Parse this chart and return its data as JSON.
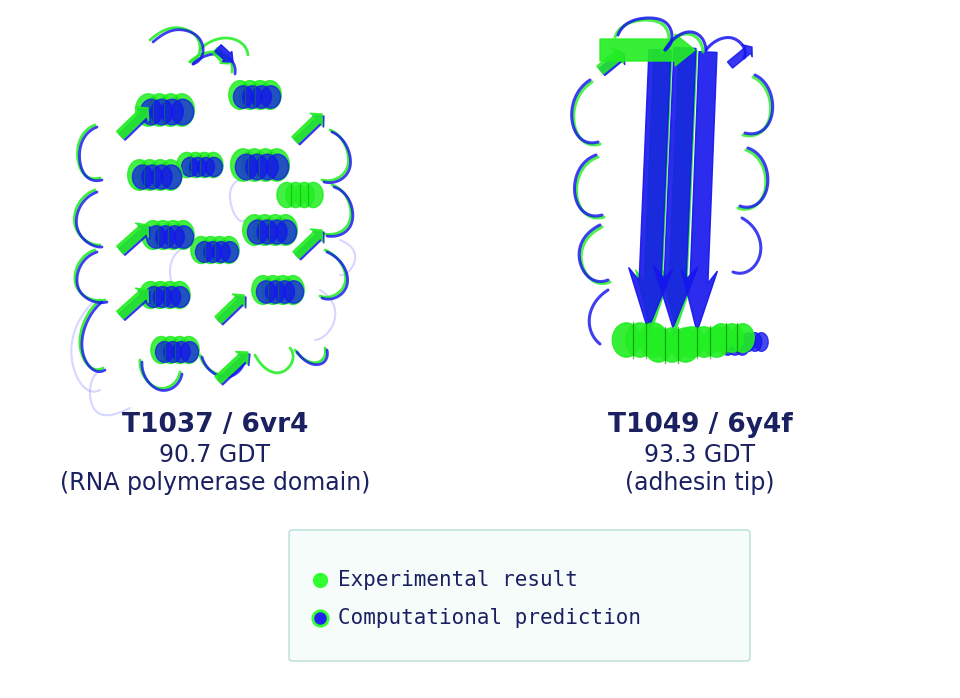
{
  "bg_color": "#ffffff",
  "title1": "T1037 / 6vr4",
  "title2": "T1049 / 6y4f",
  "subtitle1": "90.7 GDT",
  "subtitle2": "93.3 GDT",
  "desc1": "(RNA polymerase domain)",
  "desc2": "(adhesin tip)",
  "title_fontsize": 19,
  "subtitle_fontsize": 17,
  "desc_fontsize": 17,
  "title_color": "#1a2060",
  "legend_text1": "Experimental result",
  "legend_text2": "Computational prediction",
  "legend_color1": "#33ff33",
  "legend_color2": "#2222ee",
  "legend_fontsize": 15,
  "legend_border_color": "#b8ddd8",
  "fig_w": 9.6,
  "fig_h": 6.98,
  "dpi": 100
}
